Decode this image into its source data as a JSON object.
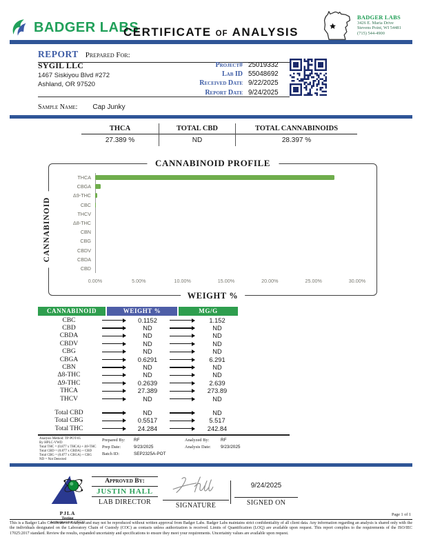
{
  "header": {
    "brand": "BADGER LABS",
    "title": {
      "word1": "CERTIFICATE",
      "word2": "OF",
      "word3": "ANALYSIS"
    },
    "lab_block": {
      "name": "BADGER LABS",
      "address1": "3426 E. Maria Drive",
      "address2": "Stevens Point, WI 54481",
      "phone": "(715) 544-4900"
    }
  },
  "report": {
    "heading_report": "REPORT",
    "heading_prepared": "Prepared For:",
    "client": {
      "name": "SYGIL LLC",
      "address1": "1467 Siskiyou Blvd #272",
      "address2": "Ashland, OR 97520"
    },
    "fields": [
      {
        "label": "Project#",
        "value": "25019332"
      },
      {
        "label": "Lab ID",
        "value": "55048692"
      },
      {
        "label": "Received Date",
        "value": "9/22/2025"
      },
      {
        "label": "Report Date",
        "value": "9/24/2025"
      }
    ],
    "sample_label": "Sample Name:",
    "sample_name": "Cap Junky"
  },
  "summary": {
    "columns": [
      {
        "label": "THCA",
        "value": "27.389 %"
      },
      {
        "label": "TOTAL CBD",
        "value": "ND"
      },
      {
        "label": "TOTAL CANNABINOIDS",
        "value": "28.397 %"
      }
    ]
  },
  "chart_data": {
    "type": "bar",
    "orientation": "horizontal",
    "title": "CANNABINOID PROFILE",
    "xlabel": "WEIGHT %",
    "ylabel": "CANNABINOID",
    "categories": [
      "THCA",
      "CBGA",
      "Δ9-THC",
      "CBC",
      "THCV",
      "Δ8-THC",
      "CBN",
      "CBG",
      "CBDV",
      "CBDA",
      "CBD"
    ],
    "values": [
      27.389,
      0.6291,
      0.2639,
      0.1152,
      0,
      0,
      0,
      0,
      0,
      0,
      0
    ],
    "xlim": [
      0,
      30
    ],
    "tick_labels": [
      "0.00%",
      "5.00%",
      "10.00%",
      "15.00%",
      "20.00%",
      "25.00%",
      "30.00%"
    ],
    "grid": false,
    "bar_color": "#6fad4c"
  },
  "results_table": {
    "headers": [
      "CANNABINOID",
      "WEIGHT %",
      "MG/G"
    ],
    "header_colors": [
      "#2e9e4e",
      "#4e5ea7",
      "#2e9e4e"
    ],
    "rows": [
      [
        "CBC",
        "0.1152",
        "1.152"
      ],
      [
        "CBD",
        "ND",
        "ND"
      ],
      [
        "CBDA",
        "ND",
        "ND"
      ],
      [
        "CBDV",
        "ND",
        "ND"
      ],
      [
        "CBG",
        "ND",
        "ND"
      ],
      [
        "CBGA",
        "0.6291",
        "6.291"
      ],
      [
        "CBN",
        "ND",
        "ND"
      ],
      [
        "Δ8-THC",
        "ND",
        "ND"
      ],
      [
        "Δ9-THC",
        "0.2639",
        "2.639"
      ],
      [
        "THCA",
        "27.389",
        "273.89"
      ],
      [
        "THCV",
        "ND",
        "ND"
      ]
    ],
    "total_rows": [
      [
        "Total CBD",
        "ND",
        "ND"
      ],
      [
        "Total CBG",
        "0.5517",
        "5.517"
      ],
      [
        "Total THC",
        "24.284",
        "242.84"
      ]
    ]
  },
  "analysis_notes": [
    "Analysis Method: TP-POT-05",
    "By HPLC-VWD",
    "Total THC = (0.877 x THCA) + Δ9-THC",
    "Total CBD = (0.877 x CBDA) + CBD",
    "Total CBG = (0.877 x CBGA) + CBG",
    "ND = Not Detected"
  ],
  "prep_block": {
    "rows": [
      {
        "label": "Prepared By:",
        "value": "RF"
      },
      {
        "label": "Prep Date:",
        "value": "9/23/2025"
      },
      {
        "label": "Batch ID:",
        "value": "SEP2325A-POT"
      }
    ]
  },
  "analysis_block": {
    "rows": [
      {
        "label": "Analyzed By:",
        "value": "RF"
      },
      {
        "label": "Analysis Date:",
        "value": "9/23/2025"
      }
    ]
  },
  "approval": {
    "approved_by_label": "Approved By:",
    "name": "JUSTIN HALL",
    "role": "LAB DIRECTOR",
    "signature_label": "SIGNATURE",
    "signed_on_date": "9/24/2025",
    "signed_on_label": "SIGNED ON"
  },
  "accreditation": {
    "org": "PJLA",
    "line2": "Testing",
    "line3": "Accreditation# 115522"
  },
  "footer": {
    "page_label": "Page 1 of 1",
    "disclaimer": "This is a Badger Labs Certificate of Analysis and may not be reproduced without written approval from Badger Labs. Badger Labs maintains strict confidentiality of all client data. Any information regarding an analysis is shared only with the the individuals designated on the Laboratory Chain of Custody (COC) as contacts unless authorization is received. Limits of Quantification (LOQ) are available upon request. This report complies to the requirements of the ISO/IEC 17025:2017 standard. Review the results, expanded uncertainty and specifications to ensure they meet your requirements. Uncertainty values are available upon request."
  },
  "colors": {
    "accent_blue": "#2f5597",
    "label_blue": "#3c5ba5",
    "brand_green": "#21a05a",
    "table_green": "#2e9e4e",
    "table_blue": "#4e5ea7",
    "bar_green": "#6fad4c"
  }
}
